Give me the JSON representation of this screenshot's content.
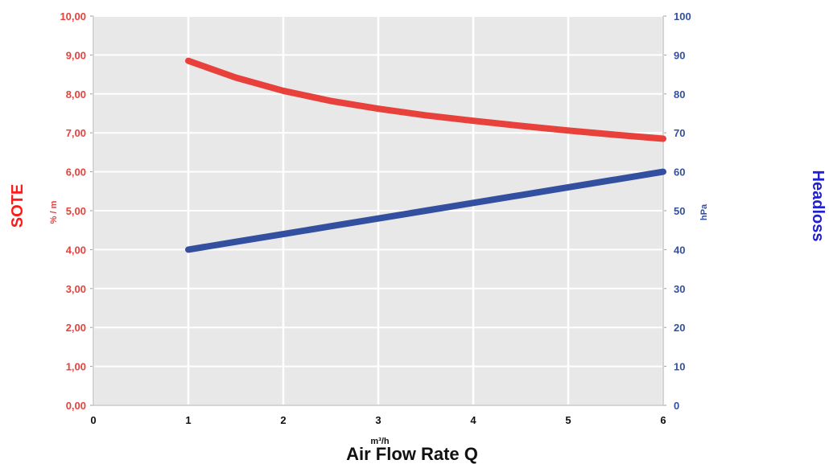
{
  "chart_data": {
    "type": "line",
    "x": [
      1,
      1.5,
      2,
      2.5,
      3,
      3.5,
      4,
      4.5,
      5,
      5.5,
      6
    ],
    "xlim": [
      0,
      6
    ],
    "x_ticks": [
      "0",
      "1",
      "2",
      "3",
      "4",
      "5",
      "6"
    ],
    "xlabel": "Air Flow Rate Q",
    "xunit": "m³/h",
    "y_left": {
      "label": "SOTE",
      "unit": "% / m",
      "lim": [
        0,
        10
      ],
      "ticks": [
        "0,00",
        "1,00",
        "2,00",
        "3,00",
        "4,00",
        "5,00",
        "6,00",
        "7,00",
        "8,00",
        "9,00",
        "10,00"
      ],
      "color": "#e8413c"
    },
    "y_right": {
      "label": "Headloss",
      "unit": "hPa",
      "lim": [
        0,
        100
      ],
      "ticks": [
        "0",
        "10",
        "20",
        "30",
        "40",
        "50",
        "60",
        "70",
        "80",
        "90",
        "100"
      ],
      "color": "#3350a0"
    },
    "series": [
      {
        "axis": "left",
        "color": "#e8413c",
        "values": [
          8.85,
          8.42,
          8.08,
          7.82,
          7.62,
          7.45,
          7.31,
          7.18,
          7.06,
          6.95,
          6.85
        ]
      },
      {
        "axis": "right",
        "color": "#3350a0",
        "values": [
          40,
          42,
          44,
          46,
          48,
          50,
          52,
          54,
          56,
          58,
          60
        ]
      }
    ],
    "grid": true,
    "plot_background": "#e8e8e8"
  }
}
